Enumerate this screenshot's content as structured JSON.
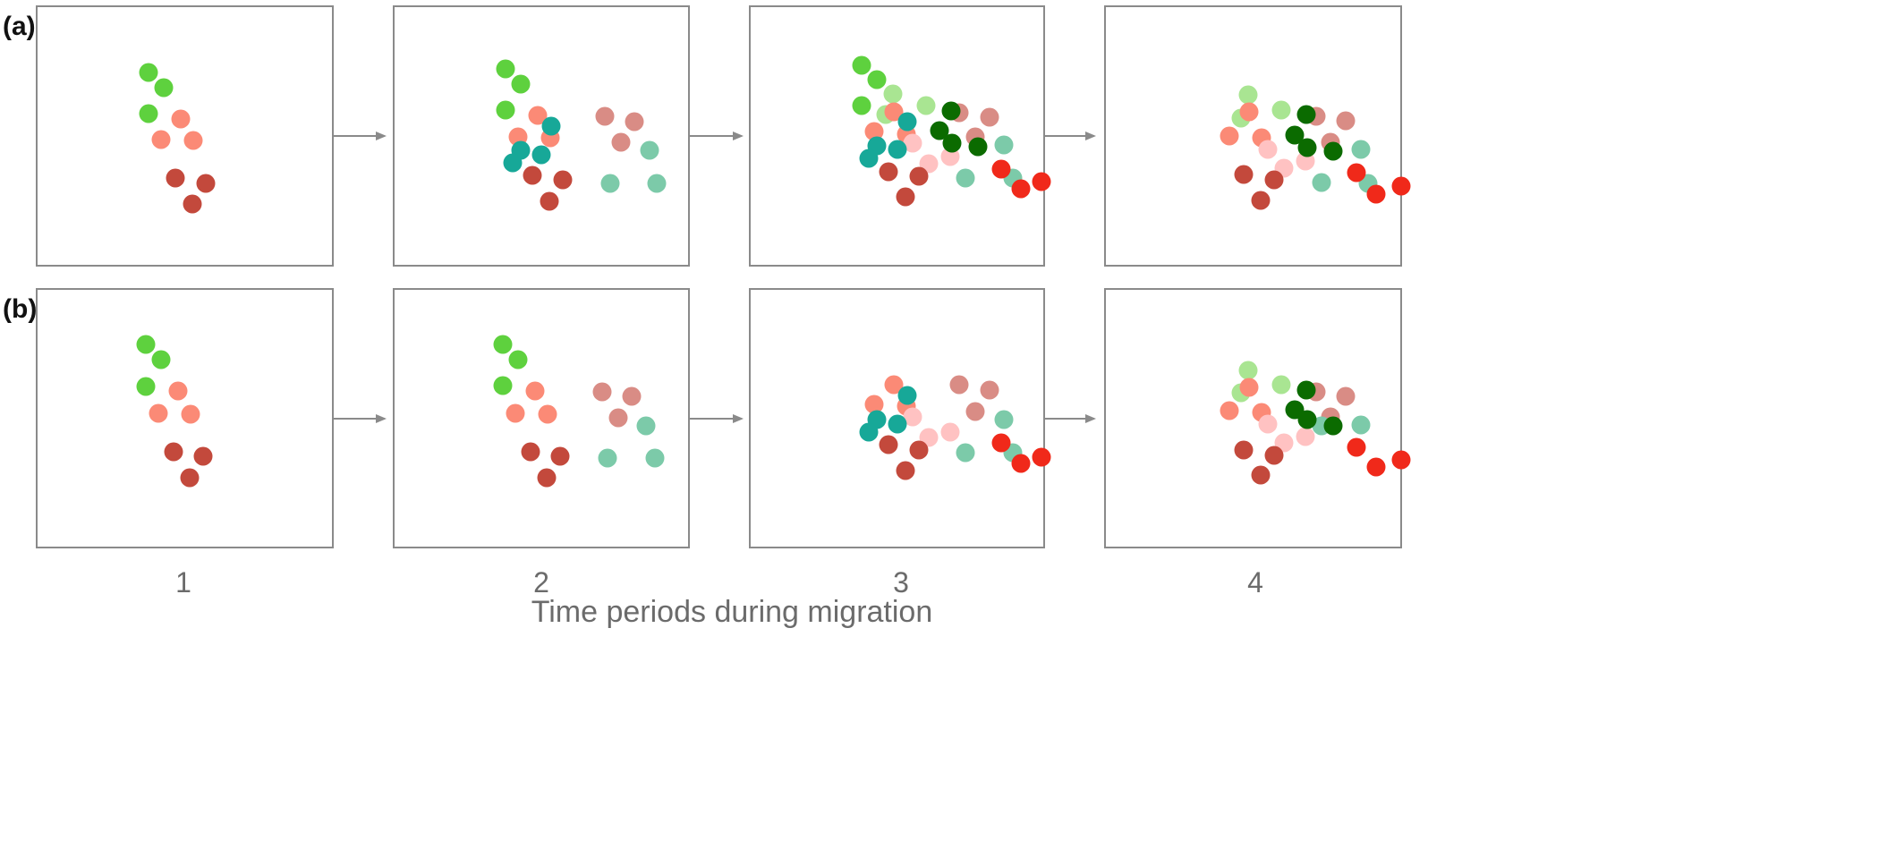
{
  "row_labels": [
    "(a)",
    "(b)"
  ],
  "period_labels": [
    "1",
    "2",
    "3",
    "4"
  ],
  "xlabel": "Time periods during migration",
  "colors": {
    "green": "#5ed13e",
    "light_green": "#a9e592",
    "dark_green": "#0b6b00",
    "salmon": "#fb8a76",
    "dark_red": "#c3493c",
    "mauve": "#d98c85",
    "teal": "#17a898",
    "mint": "#7ccaa9",
    "pink": "#ffc2c2",
    "red": "#f0291a",
    "frame": "#8a8a8a",
    "arrow": "#8a8a8a"
  },
  "panels": {
    "a": [
      [
        [
          "green",
          125,
          74
        ],
        [
          "green",
          142,
          91
        ],
        [
          "green",
          125,
          120
        ],
        [
          "salmon",
          161,
          126
        ],
        [
          "salmon",
          139,
          149
        ],
        [
          "salmon",
          175,
          150
        ],
        [
          "dark_red",
          155,
          192
        ],
        [
          "dark_red",
          189,
          198
        ],
        [
          "dark_red",
          174,
          221
        ]
      ],
      [
        [
          "green",
          125,
          70
        ],
        [
          "green",
          142,
          87
        ],
        [
          "green",
          125,
          116
        ],
        [
          "salmon",
          161,
          122
        ],
        [
          "salmon",
          139,
          146
        ],
        [
          "salmon",
          175,
          147
        ],
        [
          "dark_red",
          155,
          189
        ],
        [
          "dark_red",
          189,
          194
        ],
        [
          "dark_red",
          174,
          218
        ],
        [
          "mauve",
          236,
          123
        ],
        [
          "mauve",
          269,
          129
        ],
        [
          "mauve",
          254,
          152
        ],
        [
          "mint",
          286,
          161
        ],
        [
          "mint",
          242,
          198
        ],
        [
          "mint",
          294,
          198
        ],
        [
          "teal",
          176,
          134
        ],
        [
          "teal",
          142,
          161
        ],
        [
          "teal",
          165,
          166
        ],
        [
          "teal",
          133,
          175
        ]
      ],
      [
        [
          "green",
          125,
          66
        ],
        [
          "green",
          142,
          82
        ],
        [
          "green",
          125,
          111
        ],
        [
          "light_green",
          160,
          98
        ],
        [
          "light_green",
          197,
          111
        ],
        [
          "light_green",
          152,
          121
        ],
        [
          "salmon",
          161,
          118
        ],
        [
          "salmon",
          139,
          140
        ],
        [
          "salmon",
          175,
          143
        ],
        [
          "mauve",
          234,
          119
        ],
        [
          "mauve",
          268,
          124
        ],
        [
          "mauve",
          252,
          146
        ],
        [
          "pink",
          182,
          153
        ],
        [
          "pink",
          224,
          168
        ],
        [
          "pink",
          200,
          176
        ],
        [
          "dark_red",
          155,
          185
        ],
        [
          "dark_red",
          189,
          190
        ],
        [
          "dark_red",
          174,
          213
        ],
        [
          "mint",
          284,
          155
        ],
        [
          "mint",
          241,
          192
        ],
        [
          "mint",
          294,
          192
        ],
        [
          "teal",
          176,
          129
        ],
        [
          "teal",
          142,
          156
        ],
        [
          "teal",
          165,
          160
        ],
        [
          "teal",
          133,
          170
        ],
        [
          "dark_green",
          225,
          117
        ],
        [
          "dark_green",
          212,
          139
        ],
        [
          "dark_green",
          226,
          153
        ],
        [
          "dark_green",
          255,
          157
        ],
        [
          "red",
          281,
          182
        ],
        [
          "red",
          303,
          204
        ],
        [
          "red",
          326,
          196
        ]
      ],
      [
        [
          "light_green",
          160,
          99
        ],
        [
          "light_green",
          197,
          116
        ],
        [
          "light_green",
          152,
          125
        ],
        [
          "salmon",
          161,
          118
        ],
        [
          "salmon",
          139,
          145
        ],
        [
          "salmon",
          175,
          147
        ],
        [
          "mauve",
          236,
          123
        ],
        [
          "mauve",
          269,
          128
        ],
        [
          "mauve",
          252,
          152
        ],
        [
          "pink",
          182,
          160
        ],
        [
          "pink",
          224,
          173
        ],
        [
          "pink",
          200,
          181
        ],
        [
          "dark_red",
          155,
          188
        ],
        [
          "dark_red",
          189,
          194
        ],
        [
          "dark_red",
          174,
          217
        ],
        [
          "mint",
          286,
          160
        ],
        [
          "mint",
          242,
          197
        ],
        [
          "mint",
          294,
          198
        ],
        [
          "dark_green",
          225,
          121
        ],
        [
          "dark_green",
          212,
          144
        ],
        [
          "dark_green",
          226,
          158
        ],
        [
          "dark_green",
          255,
          162
        ],
        [
          "red",
          281,
          186
        ],
        [
          "red",
          303,
          210
        ],
        [
          "red",
          331,
          201
        ]
      ]
    ],
    "b": [
      [
        [
          "green",
          122,
          62
        ],
        [
          "green",
          139,
          79
        ],
        [
          "green",
          122,
          109
        ],
        [
          "salmon",
          158,
          114
        ],
        [
          "salmon",
          136,
          139
        ],
        [
          "salmon",
          172,
          140
        ],
        [
          "dark_red",
          153,
          182
        ],
        [
          "dark_red",
          186,
          187
        ],
        [
          "dark_red",
          171,
          211
        ]
      ],
      [
        [
          "green",
          122,
          62
        ],
        [
          "green",
          139,
          79
        ],
        [
          "green",
          122,
          108
        ],
        [
          "salmon",
          158,
          114
        ],
        [
          "salmon",
          136,
          139
        ],
        [
          "salmon",
          172,
          140
        ],
        [
          "dark_red",
          153,
          182
        ],
        [
          "dark_red",
          186,
          187
        ],
        [
          "dark_red",
          171,
          211
        ],
        [
          "mauve",
          233,
          115
        ],
        [
          "mauve",
          266,
          120
        ],
        [
          "mauve",
          251,
          144
        ],
        [
          "mint",
          282,
          153
        ],
        [
          "mint",
          239,
          189
        ],
        [
          "mint",
          292,
          189
        ]
      ],
      [
        [
          "salmon",
          161,
          107
        ],
        [
          "salmon",
          139,
          129
        ],
        [
          "salmon",
          175,
          131
        ],
        [
          "pink",
          182,
          143
        ],
        [
          "pink",
          224,
          160
        ],
        [
          "pink",
          200,
          166
        ],
        [
          "mauve",
          234,
          107
        ],
        [
          "mauve",
          268,
          113
        ],
        [
          "mauve",
          252,
          137
        ],
        [
          "dark_red",
          155,
          174
        ],
        [
          "dark_red",
          189,
          180
        ],
        [
          "dark_red",
          174,
          203
        ],
        [
          "mint",
          284,
          146
        ],
        [
          "mint",
          241,
          183
        ],
        [
          "mint",
          294,
          183
        ],
        [
          "teal",
          176,
          119
        ],
        [
          "teal",
          142,
          146
        ],
        [
          "teal",
          165,
          151
        ],
        [
          "teal",
          133,
          160
        ],
        [
          "red",
          281,
          172
        ],
        [
          "red",
          303,
          195
        ],
        [
          "red",
          326,
          188
        ]
      ],
      [
        [
          "light_green",
          160,
          91
        ],
        [
          "light_green",
          197,
          107
        ],
        [
          "light_green",
          152,
          116
        ],
        [
          "salmon",
          161,
          110
        ],
        [
          "salmon",
          139,
          136
        ],
        [
          "salmon",
          175,
          138
        ],
        [
          "mauve",
          236,
          115
        ],
        [
          "mauve",
          269,
          120
        ],
        [
          "mauve",
          252,
          143
        ],
        [
          "pink",
          182,
          151
        ],
        [
          "pink",
          224,
          165
        ],
        [
          "pink",
          200,
          172
        ],
        [
          "dark_red",
          155,
          180
        ],
        [
          "dark_red",
          189,
          186
        ],
        [
          "dark_red",
          174,
          208
        ],
        [
          "mint",
          286,
          152
        ],
        [
          "mint",
          242,
          153
        ],
        [
          "dark_green",
          225,
          113
        ],
        [
          "dark_green",
          212,
          135
        ],
        [
          "dark_green",
          226,
          146
        ],
        [
          "dark_green",
          255,
          153
        ],
        [
          "red",
          281,
          177
        ],
        [
          "red",
          303,
          199
        ],
        [
          "red",
          331,
          191
        ]
      ]
    ]
  }
}
